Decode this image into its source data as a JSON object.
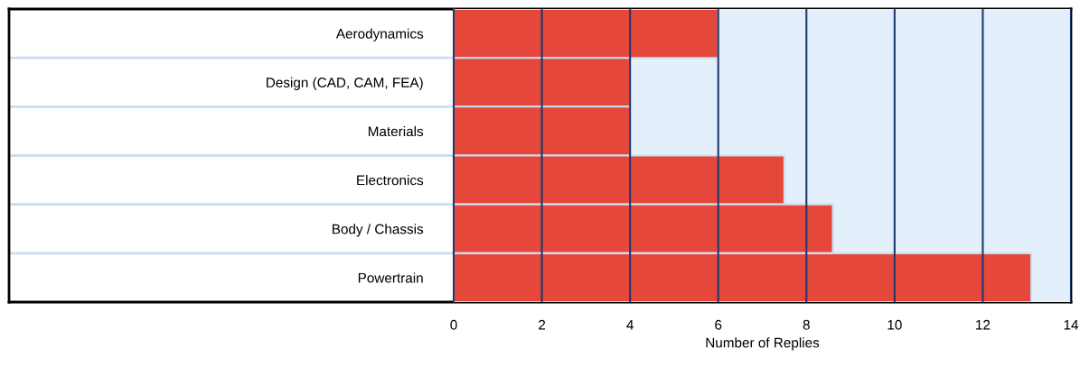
{
  "chart_data": {
    "type": "bar",
    "orientation": "horizontal",
    "categories": [
      "Aerodynamics",
      "Design (CAD, CAM, FEA)",
      "Materials",
      "Electronics",
      "Body / Chassis",
      "Powertrain"
    ],
    "values": [
      6,
      4,
      4,
      7.5,
      8.6,
      13.1
    ],
    "color": "#e5473b",
    "xlim": [
      0,
      14
    ],
    "xticks": [
      0,
      2,
      4,
      6,
      8,
      10,
      12,
      14
    ],
    "xlabel": "Number of Replies",
    "grid": "x",
    "legend": false
  }
}
